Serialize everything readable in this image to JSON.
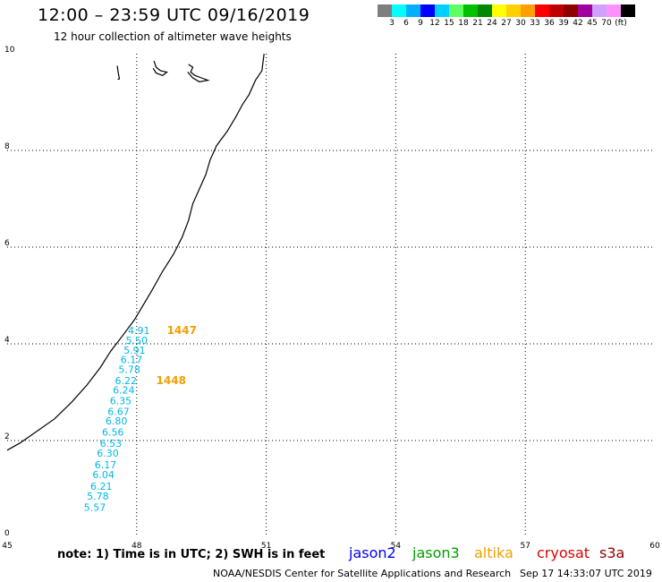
{
  "header": {
    "title": "12:00 – 23:59 UTC 09/16/2019",
    "subtitle": "12 hour collection of altimeter wave heights"
  },
  "color_scale": {
    "colors": [
      "#7f7f7f",
      "#00ffff",
      "#00b0ff",
      "#0000ff",
      "#00d0ff",
      "#60ff60",
      "#00c000",
      "#008800",
      "#ffff00",
      "#ffd000",
      "#ffa000",
      "#ff0000",
      "#c00000",
      "#900000",
      "#a000a0",
      "#d0a0ff",
      "#ff90ff",
      "#000000"
    ],
    "labels": [
      "3",
      "6",
      "9",
      "12",
      "15",
      "18",
      "21",
      "24",
      "27",
      "30",
      "33",
      "36",
      "39",
      "42",
      "45",
      "70",
      "(ft)"
    ]
  },
  "map": {
    "x_ticks": [
      "45",
      "48",
      "51",
      "54",
      "57",
      "60"
    ],
    "y_ticks": [
      "0",
      "2",
      "4",
      "6",
      "8",
      "10"
    ],
    "x_range": [
      45,
      60
    ],
    "y_range": [
      0,
      10
    ],
    "coastline": [
      [
        50.95,
        10.0
      ],
      [
        50.9,
        9.65
      ],
      [
        50.75,
        9.45
      ],
      [
        50.6,
        9.15
      ],
      [
        50.45,
        8.95
      ],
      [
        50.3,
        8.7
      ],
      [
        50.1,
        8.4
      ],
      [
        49.85,
        8.1
      ],
      [
        49.7,
        7.8
      ],
      [
        49.6,
        7.5
      ],
      [
        49.45,
        7.2
      ],
      [
        49.3,
        6.9
      ],
      [
        49.2,
        6.55
      ],
      [
        49.05,
        6.2
      ],
      [
        48.85,
        5.85
      ],
      [
        48.6,
        5.5
      ],
      [
        48.35,
        5.1
      ],
      [
        48.15,
        4.8
      ],
      [
        47.95,
        4.5
      ],
      [
        47.7,
        4.2
      ],
      [
        47.4,
        3.85
      ],
      [
        47.15,
        3.5
      ],
      [
        46.85,
        3.15
      ],
      [
        46.5,
        2.8
      ],
      [
        46.1,
        2.45
      ],
      [
        45.7,
        2.2
      ],
      [
        45.3,
        1.95
      ],
      [
        45.0,
        1.8
      ]
    ],
    "islands": [
      [
        [
          47.55,
          9.75
        ],
        [
          47.57,
          9.62
        ],
        [
          47.6,
          9.48
        ],
        [
          47.56,
          9.47
        ]
      ],
      [
        [
          48.4,
          9.85
        ],
        [
          48.45,
          9.72
        ],
        [
          48.55,
          9.65
        ],
        [
          48.7,
          9.62
        ],
        [
          48.6,
          9.55
        ],
        [
          48.45,
          9.6
        ],
        [
          48.38,
          9.7
        ]
      ],
      [
        [
          49.2,
          9.78
        ],
        [
          49.3,
          9.72
        ],
        [
          49.25,
          9.62
        ],
        [
          49.35,
          9.55
        ],
        [
          49.5,
          9.5
        ],
        [
          49.65,
          9.45
        ],
        [
          49.45,
          9.42
        ],
        [
          49.3,
          9.5
        ],
        [
          49.18,
          9.62
        ]
      ]
    ],
    "track_color": "#00b8e6",
    "measurements": [
      {
        "lon": 48.05,
        "lat": 4.2,
        "swh": "4.91"
      },
      {
        "lon": 48.0,
        "lat": 4.0,
        "swh": "5.50"
      },
      {
        "lon": 47.95,
        "lat": 3.8,
        "swh": "5.91"
      },
      {
        "lon": 47.88,
        "lat": 3.6,
        "swh": "6.17"
      },
      {
        "lon": 47.83,
        "lat": 3.4,
        "swh": "5.78"
      },
      {
        "lon": 47.75,
        "lat": 3.17,
        "swh": "6.22"
      },
      {
        "lon": 47.7,
        "lat": 2.97,
        "swh": "6.24"
      },
      {
        "lon": 47.63,
        "lat": 2.75,
        "swh": "6.35"
      },
      {
        "lon": 47.58,
        "lat": 2.53,
        "swh": "6.67"
      },
      {
        "lon": 47.53,
        "lat": 2.33,
        "swh": "6.80"
      },
      {
        "lon": 47.45,
        "lat": 2.1,
        "swh": "6.56"
      },
      {
        "lon": 47.4,
        "lat": 1.87,
        "swh": "6.53"
      },
      {
        "lon": 47.33,
        "lat": 1.67,
        "swh": "6.30"
      },
      {
        "lon": 47.28,
        "lat": 1.43,
        "swh": "6.17"
      },
      {
        "lon": 47.23,
        "lat": 1.22,
        "swh": "6.04"
      },
      {
        "lon": 47.18,
        "lat": 0.98,
        "swh": "6.21"
      },
      {
        "lon": 47.1,
        "lat": 0.78,
        "swh": "5.78"
      },
      {
        "lon": 47.03,
        "lat": 0.55,
        "swh": "5.57"
      }
    ],
    "time_labels": [
      {
        "lon": 48.7,
        "lat": 4.2,
        "text": "1447",
        "color": "#f0a000"
      },
      {
        "lon": 48.45,
        "lat": 3.17,
        "text": "1448",
        "color": "#f0a000"
      }
    ]
  },
  "footer": {
    "note": "note:  1) Time is in UTC;  2) SWH is in feet",
    "satellites": [
      {
        "name": "jason2",
        "color": "#0000ff"
      },
      {
        "name": "jason3",
        "color": "#00a000"
      },
      {
        "name": "altika",
        "color": "#f0a000"
      },
      {
        "name": "cryosat",
        "color": "#e00000"
      },
      {
        "name": "s3a",
        "color": "#900000"
      }
    ],
    "credit": "NOAA/NESDIS Center for Satellite Applications and Research",
    "generated": "Sep 17 14:33:07 UTC 2019"
  }
}
